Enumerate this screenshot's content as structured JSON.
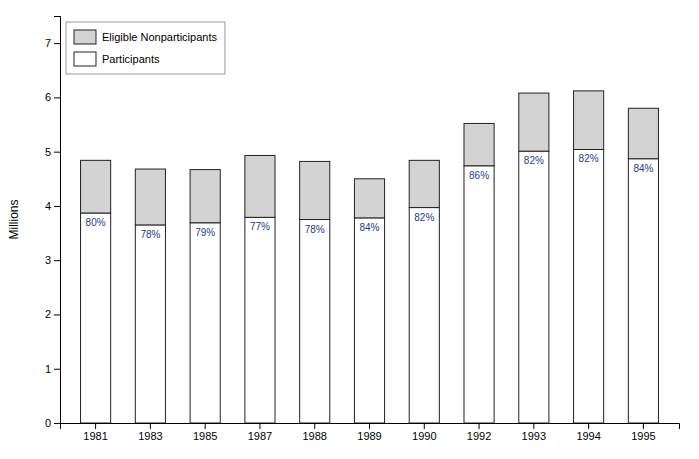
{
  "chart_data": {
    "type": "bar",
    "stacked": true,
    "categories": [
      "1981",
      "1983",
      "1985",
      "1987",
      "1988",
      "1989",
      "1990",
      "1992",
      "1993",
      "1994",
      "1995"
    ],
    "series": [
      {
        "name": "Participants",
        "color": "#ffffff",
        "values": [
          3.87,
          3.65,
          3.69,
          3.79,
          3.75,
          3.78,
          3.97,
          4.74,
          5.01,
          5.04,
          4.87
        ]
      },
      {
        "name": "Eligible Nonparticipants",
        "color": "#d3d3d3",
        "values": [
          0.97,
          1.03,
          0.98,
          1.14,
          1.07,
          0.72,
          0.87,
          0.78,
          1.07,
          1.08,
          0.93
        ]
      }
    ],
    "annotations": [
      "80%",
      "78%",
      "79%",
      "77%",
      "78%",
      "84%",
      "82%",
      "86%",
      "82%",
      "82%",
      "84%"
    ],
    "ylabel": "Millions",
    "ylim": [
      0,
      7.5
    ],
    "yticks": [
      0,
      1,
      2,
      3,
      4,
      5,
      6,
      7
    ],
    "grid": false,
    "legend": "upper-left"
  }
}
